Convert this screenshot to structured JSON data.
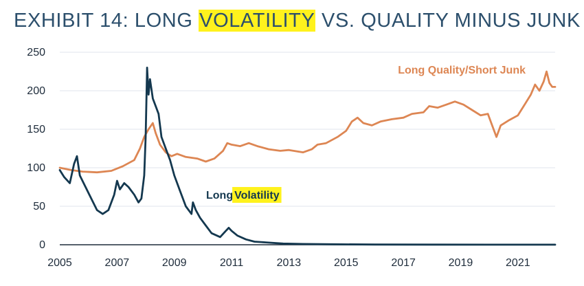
{
  "title": {
    "prefix": "EXHIBIT 14: LONG ",
    "highlight": "VOLATILITY",
    "suffix": " VS. QUALITY MINUS JUNK"
  },
  "colors": {
    "title": "#2c4f6c",
    "highlight": "#fff21d",
    "volatility": "#14384f",
    "quality": "#dd8653",
    "grid": "#dfe5ec",
    "axis": "#1d2b3a"
  },
  "chart_data": {
    "type": "line",
    "xlim": [
      2005,
      2022.3
    ],
    "ylim": [
      0,
      250
    ],
    "xticks": [
      2005,
      2007,
      2009,
      2011,
      2013,
      2015,
      2017,
      2019,
      2021
    ],
    "yticks": [
      0,
      50,
      100,
      150,
      200,
      250
    ],
    "grid": "horizontal",
    "series": [
      {
        "name": "Long Quality/Short Junk",
        "label_color": "#dd8653",
        "points": [
          [
            2005.0,
            100
          ],
          [
            2005.4,
            97
          ],
          [
            2005.8,
            95
          ],
          [
            2006.3,
            94
          ],
          [
            2006.8,
            96
          ],
          [
            2007.2,
            102
          ],
          [
            2007.6,
            110
          ],
          [
            2007.8,
            125
          ],
          [
            2007.95,
            140
          ],
          [
            2008.1,
            150
          ],
          [
            2008.25,
            158
          ],
          [
            2008.35,
            145
          ],
          [
            2008.5,
            130
          ],
          [
            2008.7,
            120
          ],
          [
            2008.9,
            115
          ],
          [
            2009.1,
            118
          ],
          [
            2009.4,
            114
          ],
          [
            2009.8,
            112
          ],
          [
            2010.1,
            108
          ],
          [
            2010.4,
            112
          ],
          [
            2010.7,
            122
          ],
          [
            2010.85,
            132
          ],
          [
            2011.0,
            130
          ],
          [
            2011.3,
            128
          ],
          [
            2011.6,
            132
          ],
          [
            2011.9,
            128
          ],
          [
            2012.3,
            124
          ],
          [
            2012.7,
            122
          ],
          [
            2013.0,
            123
          ],
          [
            2013.5,
            120
          ],
          [
            2013.8,
            124
          ],
          [
            2014.0,
            130
          ],
          [
            2014.3,
            132
          ],
          [
            2014.7,
            140
          ],
          [
            2015.0,
            148
          ],
          [
            2015.2,
            160
          ],
          [
            2015.4,
            165
          ],
          [
            2015.6,
            158
          ],
          [
            2015.9,
            155
          ],
          [
            2016.2,
            160
          ],
          [
            2016.6,
            163
          ],
          [
            2017.0,
            165
          ],
          [
            2017.3,
            170
          ],
          [
            2017.7,
            172
          ],
          [
            2017.9,
            180
          ],
          [
            2018.2,
            178
          ],
          [
            2018.5,
            182
          ],
          [
            2018.8,
            186
          ],
          [
            2019.1,
            182
          ],
          [
            2019.4,
            175
          ],
          [
            2019.7,
            168
          ],
          [
            2019.95,
            170
          ],
          [
            2020.1,
            155
          ],
          [
            2020.25,
            140
          ],
          [
            2020.4,
            155
          ],
          [
            2020.7,
            162
          ],
          [
            2021.0,
            168
          ],
          [
            2021.2,
            180
          ],
          [
            2021.45,
            195
          ],
          [
            2021.6,
            208
          ],
          [
            2021.75,
            200
          ],
          [
            2021.9,
            212
          ],
          [
            2022.0,
            225
          ],
          [
            2022.1,
            210
          ],
          [
            2022.2,
            205
          ],
          [
            2022.3,
            205
          ]
        ]
      },
      {
        "name": "Long Volatility",
        "label_color": "#14384f",
        "points": [
          [
            2005.0,
            97
          ],
          [
            2005.15,
            88
          ],
          [
            2005.35,
            80
          ],
          [
            2005.5,
            105
          ],
          [
            2005.6,
            115
          ],
          [
            2005.7,
            90
          ],
          [
            2005.9,
            75
          ],
          [
            2006.1,
            60
          ],
          [
            2006.3,
            45
          ],
          [
            2006.5,
            40
          ],
          [
            2006.7,
            45
          ],
          [
            2006.9,
            65
          ],
          [
            2007.0,
            83
          ],
          [
            2007.1,
            72
          ],
          [
            2007.25,
            80
          ],
          [
            2007.4,
            75
          ],
          [
            2007.6,
            65
          ],
          [
            2007.75,
            55
          ],
          [
            2007.85,
            60
          ],
          [
            2007.95,
            90
          ],
          [
            2008.0,
            140
          ],
          [
            2008.05,
            230
          ],
          [
            2008.1,
            195
          ],
          [
            2008.15,
            215
          ],
          [
            2008.25,
            190
          ],
          [
            2008.35,
            180
          ],
          [
            2008.45,
            170
          ],
          [
            2008.55,
            140
          ],
          [
            2008.7,
            125
          ],
          [
            2008.85,
            110
          ],
          [
            2009.0,
            90
          ],
          [
            2009.2,
            70
          ],
          [
            2009.4,
            50
          ],
          [
            2009.6,
            40
          ],
          [
            2009.65,
            55
          ],
          [
            2009.75,
            45
          ],
          [
            2009.9,
            35
          ],
          [
            2010.1,
            25
          ],
          [
            2010.3,
            15
          ],
          [
            2010.6,
            10
          ],
          [
            2010.8,
            18
          ],
          [
            2010.9,
            22
          ],
          [
            2011.0,
            18
          ],
          [
            2011.2,
            12
          ],
          [
            2011.5,
            7
          ],
          [
            2011.8,
            4
          ],
          [
            2012.2,
            3
          ],
          [
            2012.8,
            1.5
          ],
          [
            2013.5,
            1
          ],
          [
            2014.5,
            0.6
          ],
          [
            2016.0,
            0.3
          ],
          [
            2018.0,
            0.2
          ],
          [
            2020.0,
            0.1
          ],
          [
            2022.3,
            0.1
          ]
        ]
      }
    ],
    "labels": {
      "quality": "Long Quality/Short Junk",
      "volatility_prefix": "Long ",
      "volatility_highlight": "Volatility"
    }
  }
}
